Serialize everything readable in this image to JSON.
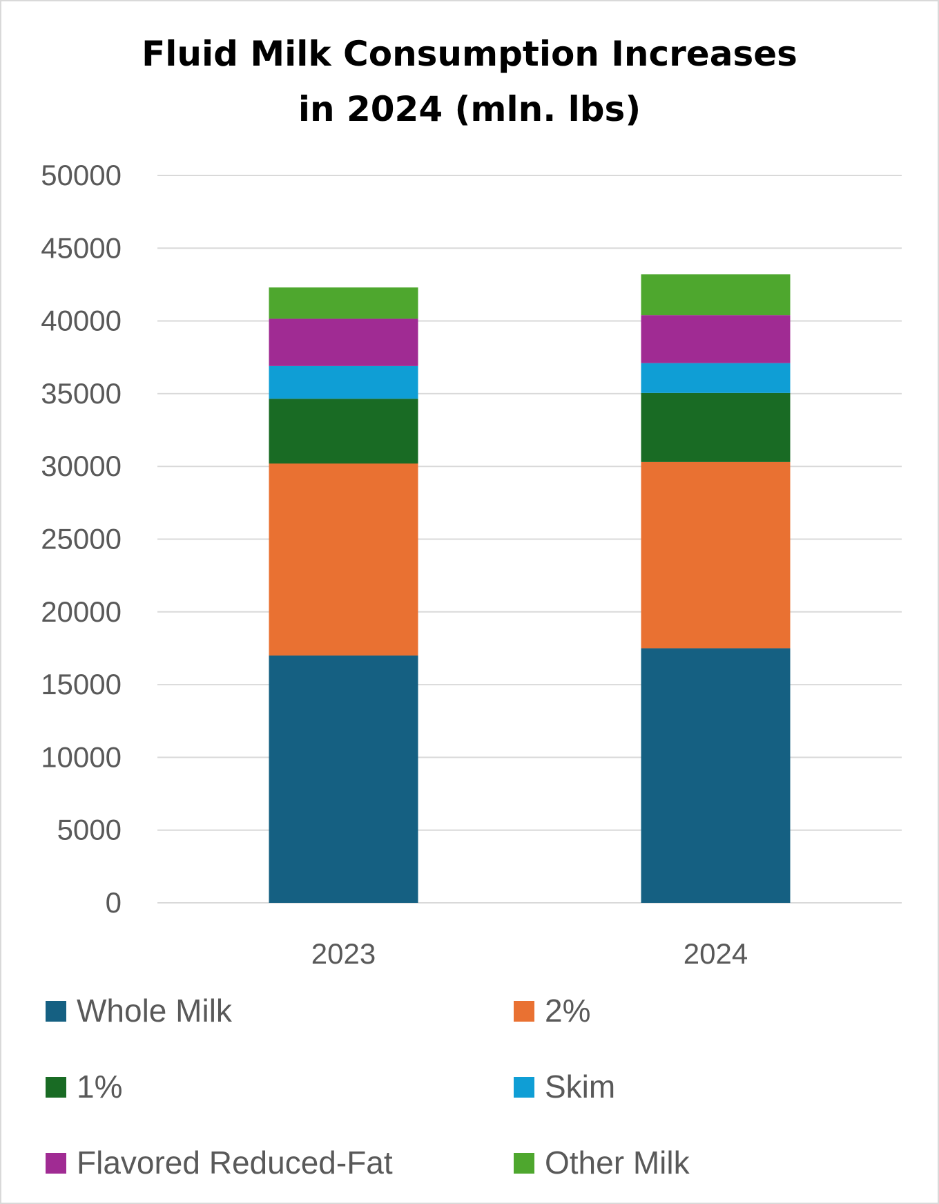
{
  "chart_data": {
    "type": "bar",
    "stacked": true,
    "title_lines": [
      "Fluid Milk Consumption Increases",
      "in 2024 (mln. lbs)"
    ],
    "categories": [
      "2023",
      "2024"
    ],
    "ylim": [
      0,
      50000
    ],
    "yticks": [
      "0",
      "5000",
      "10000",
      "15000",
      "20000",
      "25000",
      "30000",
      "35000",
      "40000",
      "45000",
      "50000"
    ],
    "grid": true,
    "legend_position": "bottom",
    "series": [
      {
        "name": "Whole Milk",
        "color": "#156082",
        "values": [
          17000,
          17500
        ]
      },
      {
        "name": "2%",
        "color": "#E97132",
        "values": [
          13200,
          12800
        ]
      },
      {
        "name": "1%",
        "color": "#196B24",
        "values": [
          4450,
          4750
        ]
      },
      {
        "name": "Skim",
        "color": "#0F9ED5",
        "values": [
          2250,
          2050
        ]
      },
      {
        "name": "Flavored Reduced-Fat",
        "color": "#A02B93",
        "values": [
          3250,
          3300
        ]
      },
      {
        "name": "Other Milk",
        "color": "#4EA72E",
        "values": [
          2150,
          2800
        ]
      }
    ]
  }
}
